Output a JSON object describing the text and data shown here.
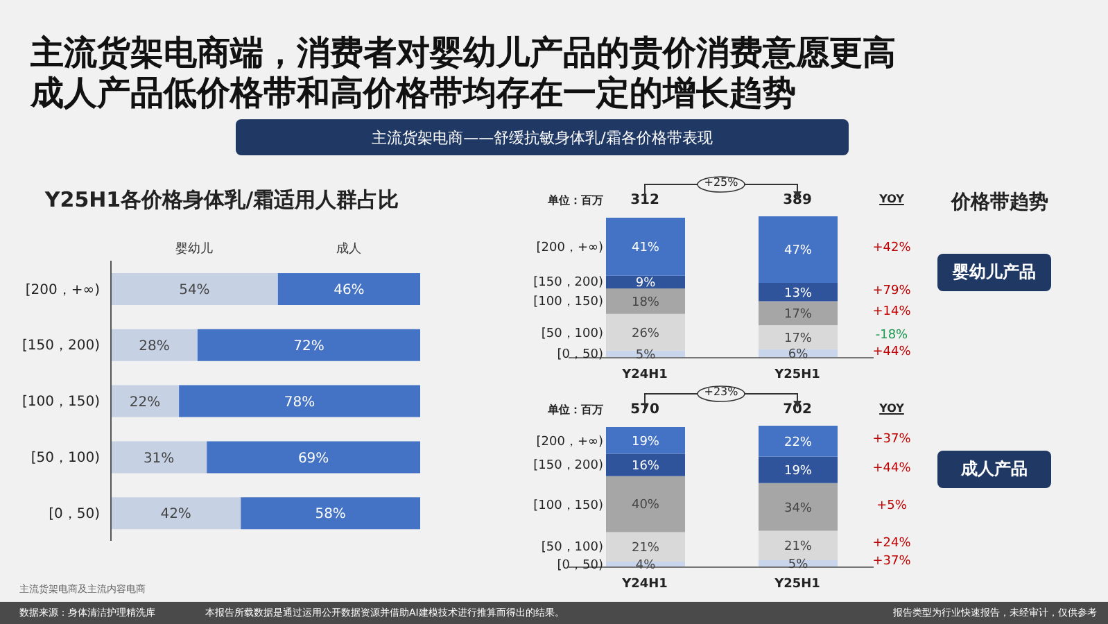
{
  "chart_data": [
    {
      "type": "bar",
      "orientation": "horizontal",
      "stacked": true,
      "title": "Y25H1各价格身体乳/霜适用人群占比",
      "categories": [
        "[200，+∞)",
        "[150，200)",
        "[100，150)",
        "[50，100)",
        "[0，50)"
      ],
      "series": [
        {
          "name": "婴幼儿",
          "color": "#c6d1e4",
          "values": [
            54,
            28,
            22,
            31,
            42
          ],
          "value_labels": [
            "54%",
            "28%",
            "22%",
            "31%",
            "42%"
          ]
        },
        {
          "name": "成人",
          "color": "#4472c4",
          "values": [
            46,
            72,
            78,
            69,
            58
          ],
          "value_labels": [
            "46%",
            "72%",
            "78%",
            "69%",
            "58%"
          ]
        }
      ],
      "legend": "top",
      "annotations": [
        "主流货架电商端，消费者对婴幼儿产品的贵价消费意愿更高",
        "成人产品低价格带和高价格带均存在一定的增长趋势",
        "主流货架电商——舒缓抗敏身体乳/霜各价格带表现",
        "主流货架电商及主流内容电商",
        "数据来源：身体清洁护理精洗库",
        "本报告所载数据是通过运用公开数据资源并借助AI建模技术进行推算而得出的结果。",
        "报告类型为行业快速报告，未经审计，仅供参考"
      ]
    },
    {
      "type": "bar",
      "stacked": true,
      "categories": [
        "Y24H1",
        "Y25H1"
      ],
      "series": [
        {
          "name": "[0，50)",
          "color": "#c9d5ea",
          "values": [
            5,
            6
          ],
          "value_labels": [
            "5%",
            "6%"
          ]
        },
        {
          "name": "[50，100)",
          "color": "#d9d9d9",
          "values": [
            26,
            17
          ],
          "value_labels": [
            "26%",
            "17%"
          ]
        },
        {
          "name": "[100，150)",
          "color": "#a6a6a6",
          "values": [
            18,
            17
          ],
          "value_labels": [
            "18%",
            "17%"
          ]
        },
        {
          "name": "[150，200)",
          "color": "#2f549b",
          "values": [
            9,
            13
          ],
          "value_labels": [
            "9%",
            "13%"
          ]
        },
        {
          "name": "[200，+∞)",
          "color": "#4472c4",
          "values": [
            41,
            47
          ],
          "value_labels": [
            "41%",
            "47%"
          ]
        }
      ],
      "annotations": [
        "单位：百万",
        "YOY",
        "312",
        "389",
        "+44%",
        "-18%",
        "+14%",
        "+79%",
        "+42%",
        "+25%",
        "价格带趋势",
        "婴幼儿产品"
      ]
    },
    {
      "type": "bar",
      "stacked": true,
      "categories": [
        "Y24H1",
        "Y25H1"
      ],
      "series": [
        {
          "name": "[0，50)",
          "color": "#c9d5ea",
          "values": [
            4,
            5
          ],
          "value_labels": [
            "4%",
            "5%"
          ]
        },
        {
          "name": "[50，100)",
          "color": "#d9d9d9",
          "values": [
            21,
            21
          ],
          "value_labels": [
            "21%",
            "21%"
          ]
        },
        {
          "name": "[100，150)",
          "color": "#a6a6a6",
          "values": [
            40,
            34
          ],
          "value_labels": [
            "40%",
            "34%"
          ]
        },
        {
          "name": "[150，200)",
          "color": "#2f549b",
          "values": [
            16,
            19
          ],
          "value_labels": [
            "16%",
            "19%"
          ]
        },
        {
          "name": "[200，+∞)",
          "color": "#4472c4",
          "values": [
            19,
            22
          ],
          "value_labels": [
            "19%",
            "22%"
          ]
        }
      ],
      "annotations": [
        "单位：百万",
        "YOY",
        "570",
        "702",
        "+37%",
        "+24%",
        "+5%",
        "+44%",
        "+37%",
        "+23%",
        "成人产品"
      ]
    }
  ]
}
